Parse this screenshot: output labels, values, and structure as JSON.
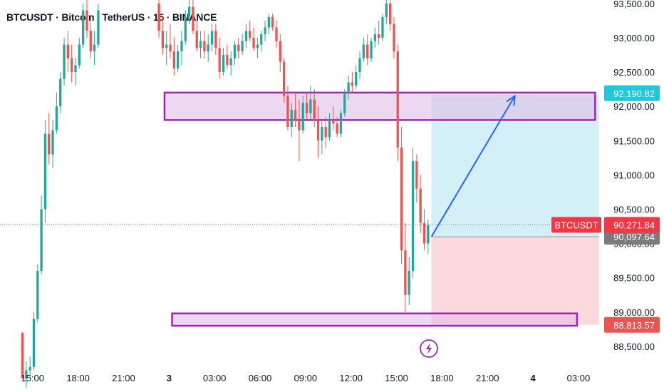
{
  "header": {
    "symbol_title": "BTCUSDT · Bitcoin / TetherUS · 15 · BINANCE"
  },
  "colors": {
    "up": "#26a69a",
    "down": "#ef5350",
    "zone_border": "#9c27b0",
    "zone_fill": "#e1bee7",
    "target_fill": "#d3f0f8",
    "stop_fill": "#fbd9de",
    "target_tag": "#26c6da",
    "stop_tag": "#ef5350",
    "last_tag": "#f23645",
    "entry_tag": "#7b7b7b",
    "arrow": "#2962ff"
  },
  "chart_data": {
    "type": "candlestick",
    "symbol": "BTCUSDT",
    "interval": "15",
    "exchange": "BINANCE",
    "ylim": [
      88250,
      93550
    ],
    "y_ticks": [
      "88,500.00",
      "89,000.00",
      "89,500.00",
      "90,000.00",
      "90,500.00",
      "91,000.00",
      "91,500.00",
      "92,000.00",
      "92,500.00",
      "93,000.00",
      "93,500.00"
    ],
    "y_tick_values": [
      88500,
      89000,
      89500,
      90000,
      90500,
      91000,
      91500,
      92000,
      92500,
      93000,
      93500
    ],
    "x_ticks": [
      "15:00",
      "18:00",
      "21:00",
      "3",
      "03:00",
      "06:00",
      "09:00",
      "12:00",
      "15:00",
      "18:00",
      "21:00",
      "4",
      "03:00"
    ],
    "x_tick_hours": [
      15,
      18,
      21,
      24,
      27,
      30,
      33,
      36,
      39,
      42,
      45,
      48,
      51
    ],
    "xlim_hours": [
      12.85,
      52.6
    ],
    "current_price": 90271.84,
    "current_price_label": "90,271.84",
    "last_symbol_tag": "BTCUSDT",
    "entry_price": 90097.64,
    "entry_price_label": "90,097.64",
    "target_price": 92190.82,
    "target_price_label": "92,190.82",
    "stop_price": 88813.57,
    "stop_price_label": "88,813.57",
    "resistance_zone": {
      "low": 91800,
      "high": 92200,
      "x_start": 23.7,
      "x_end": 52.1
    },
    "support_zone": {
      "low": 88800,
      "high": 88980,
      "x_start": 24.2,
      "x_end": 50.9
    },
    "position": {
      "x_start": 41.3,
      "x_end": 52.35
    },
    "projection_arrow": {
      "from": [
        41.3,
        90097.64
      ],
      "to": [
        46.8,
        92150
      ]
    },
    "candles": [
      [
        14.33,
        88700,
        88700,
        88030,
        88030
      ],
      [
        14.58,
        88030,
        88280,
        87900,
        88150
      ],
      [
        14.83,
        88150,
        88350,
        88050,
        88200
      ],
      [
        15.08,
        88200,
        89000,
        88150,
        88900
      ],
      [
        15.33,
        88900,
        89700,
        88850,
        89600
      ],
      [
        15.58,
        89600,
        90700,
        89550,
        90500
      ],
      [
        15.83,
        90500,
        91800,
        90300,
        91600
      ],
      [
        16.08,
        91600,
        91900,
        91150,
        91300
      ],
      [
        16.33,
        91300,
        91800,
        91100,
        91650
      ],
      [
        16.58,
        91650,
        92200,
        91600,
        92000
      ],
      [
        16.83,
        92000,
        92500,
        91900,
        92400
      ],
      [
        17.08,
        92400,
        93000,
        92300,
        92900
      ],
      [
        17.33,
        92900,
        93100,
        92500,
        92700
      ],
      [
        17.58,
        92700,
        92900,
        92350,
        92500
      ],
      [
        17.83,
        92500,
        92700,
        92300,
        92600
      ],
      [
        18.08,
        92600,
        93000,
        92550,
        92900
      ],
      [
        18.33,
        92900,
        93500,
        92850,
        93400
      ],
      [
        18.58,
        93400,
        93550,
        93000,
        93100
      ],
      [
        18.83,
        93100,
        93300,
        92700,
        92800
      ],
      [
        19.08,
        92800,
        93100,
        92600,
        92900
      ],
      [
        19.33,
        92900,
        93500,
        92850,
        93400
      ],
      [
        23.33,
        93500,
        93550,
        93000,
        93100
      ],
      [
        23.58,
        93100,
        93300,
        92750,
        92850
      ],
      [
        23.83,
        92850,
        93100,
        92600,
        92900
      ],
      [
        24.08,
        92900,
        93200,
        92700,
        92800
      ],
      [
        24.33,
        92800,
        93000,
        92450,
        92550
      ],
      [
        24.58,
        92550,
        92900,
        92500,
        92800
      ],
      [
        24.83,
        92800,
        93100,
        92600,
        92950
      ],
      [
        25.08,
        92950,
        93400,
        92900,
        93300
      ],
      [
        25.33,
        93300,
        93550,
        93200,
        93450
      ],
      [
        25.58,
        93450,
        93550,
        93050,
        93100
      ],
      [
        25.83,
        93100,
        93250,
        92800,
        92850
      ],
      [
        26.08,
        92850,
        93100,
        92700,
        92950
      ],
      [
        26.33,
        92950,
        93100,
        92700,
        92800
      ],
      [
        26.58,
        92800,
        93050,
        92650,
        92900
      ],
      [
        26.83,
        92900,
        93200,
        92800,
        93100
      ],
      [
        27.08,
        93100,
        93200,
        92750,
        92850
      ],
      [
        27.33,
        92850,
        93000,
        92400,
        92500
      ],
      [
        27.58,
        92500,
        92850,
        92450,
        92750
      ],
      [
        27.83,
        92750,
        92900,
        92550,
        92600
      ],
      [
        28.08,
        92600,
        92800,
        92450,
        92700
      ],
      [
        28.33,
        92700,
        92950,
        92600,
        92900
      ],
      [
        28.58,
        92900,
        93000,
        92700,
        92800
      ],
      [
        28.83,
        92800,
        93050,
        92750,
        92950
      ],
      [
        29.08,
        92950,
        93200,
        92850,
        93100
      ],
      [
        29.33,
        93100,
        93250,
        92950,
        93000
      ],
      [
        29.58,
        93000,
        93150,
        92800,
        92850
      ],
      [
        29.83,
        92850,
        93000,
        92700,
        92900
      ],
      [
        30.08,
        92900,
        93100,
        92800,
        93050
      ],
      [
        30.33,
        93050,
        93250,
        92950,
        93150
      ],
      [
        30.58,
        93150,
        93350,
        93050,
        93300
      ],
      [
        30.83,
        93300,
        93350,
        93100,
        93150
      ],
      [
        31.08,
        93150,
        93250,
        92850,
        92950
      ],
      [
        31.33,
        92950,
        93050,
        92500,
        92650
      ],
      [
        31.58,
        92650,
        92700,
        92050,
        92150
      ],
      [
        31.83,
        92150,
        92300,
        91650,
        91700
      ],
      [
        32.08,
        91700,
        92050,
        91550,
        91950
      ],
      [
        32.33,
        91950,
        92200,
        91700,
        91800
      ],
      [
        32.58,
        91800,
        92100,
        91200,
        91650
      ],
      [
        32.83,
        91650,
        92150,
        91600,
        92050
      ],
      [
        33.08,
        92050,
        92200,
        91800,
        91900
      ],
      [
        33.33,
        91900,
        92300,
        91800,
        92100
      ],
      [
        33.58,
        92100,
        92250,
        91700,
        91800
      ],
      [
        33.83,
        91800,
        92000,
        91250,
        91500
      ],
      [
        34.08,
        91500,
        91800,
        91300,
        91700
      ],
      [
        34.33,
        91700,
        91850,
        91400,
        91550
      ],
      [
        34.58,
        91550,
        91900,
        91500,
        91800
      ],
      [
        34.83,
        91800,
        92000,
        91650,
        91750
      ],
      [
        35.08,
        91750,
        91850,
        91550,
        91600
      ],
      [
        35.33,
        91600,
        91950,
        91550,
        91900
      ],
      [
        35.58,
        91900,
        92250,
        91850,
        92200
      ],
      [
        35.83,
        92200,
        92450,
        92100,
        92350
      ],
      [
        36.08,
        92350,
        92500,
        92200,
        92300
      ],
      [
        36.33,
        92300,
        92600,
        92250,
        92500
      ],
      [
        36.58,
        92500,
        92800,
        92400,
        92700
      ],
      [
        36.83,
        92700,
        93000,
        92650,
        92900
      ],
      [
        37.08,
        92900,
        93050,
        92600,
        92700
      ],
      [
        37.33,
        92700,
        93000,
        92650,
        92950
      ],
      [
        37.58,
        92950,
        93150,
        92850,
        93050
      ],
      [
        37.83,
        93050,
        93250,
        92900,
        93000
      ],
      [
        38.08,
        93000,
        93350,
        92950,
        93300
      ],
      [
        38.33,
        93300,
        93550,
        93200,
        93500
      ],
      [
        38.58,
        93500,
        93550,
        93100,
        93200
      ],
      [
        38.83,
        93200,
        93300,
        92700,
        92800
      ],
      [
        39.08,
        92800,
        92900,
        91200,
        91400
      ],
      [
        39.33,
        91400,
        91700,
        89700,
        89900
      ],
      [
        39.58,
        89900,
        90300,
        89000,
        89250
      ],
      [
        39.83,
        89250,
        89800,
        89100,
        89600
      ],
      [
        40.08,
        89600,
        91400,
        89500,
        91200
      ],
      [
        40.33,
        91200,
        91300,
        90600,
        90800
      ],
      [
        40.58,
        90800,
        91000,
        90150,
        90300
      ],
      [
        40.83,
        90300,
        90500,
        89900,
        90000
      ],
      [
        41.08,
        90000,
        90350,
        89850,
        90272
      ]
    ]
  }
}
